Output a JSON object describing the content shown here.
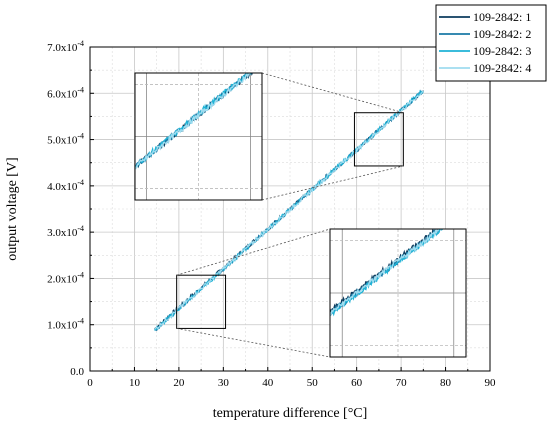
{
  "chart_data": {
    "type": "line",
    "xlabel": "temperature difference [°C]",
    "ylabel": "output voltage [V]",
    "xlim": [
      0,
      90
    ],
    "ylim": [
      0.0,
      0.0007
    ],
    "x_ticks": [
      "0",
      "10",
      "20",
      "30",
      "40",
      "50",
      "60",
      "70",
      "80",
      "90"
    ],
    "y_ticks": [
      "0.0",
      "1.0x10^-4",
      "2.0x10^-4",
      "3.0x10^-4",
      "4.0x10^-4",
      "5.0x10^-4",
      "6.0x10^-4",
      "7.0x10^-4"
    ],
    "grid": true,
    "legend_position": "top-right",
    "series": [
      {
        "name": "109-2842: 1",
        "color": "#0c3c5e",
        "x": [
          14.5,
          75
        ],
        "y": [
          9.05e-05,
          0.000605
        ]
      },
      {
        "name": "109-2842: 2",
        "color": "#1a79a6",
        "x": [
          14.5,
          75
        ],
        "y": [
          8.8e-05,
          0.000606
        ]
      },
      {
        "name": "109-2842: 3",
        "color": "#1fb3d6",
        "x": [
          14.5,
          75
        ],
        "y": [
          8.7e-05,
          0.000607
        ]
      },
      {
        "name": "109-2842: 4",
        "color": "#9fdcef",
        "x": [
          14.5,
          75
        ],
        "y": [
          8.85e-05,
          0.000605
        ]
      }
    ],
    "zoom_regions": [
      {
        "xrange": [
          59.5,
          70.5
        ],
        "yrange": [
          0.000443,
          0.000558
        ]
      },
      {
        "xrange": [
          19.5,
          30.5
        ],
        "yrange": [
          9.2e-05,
          0.000207
        ]
      }
    ]
  }
}
